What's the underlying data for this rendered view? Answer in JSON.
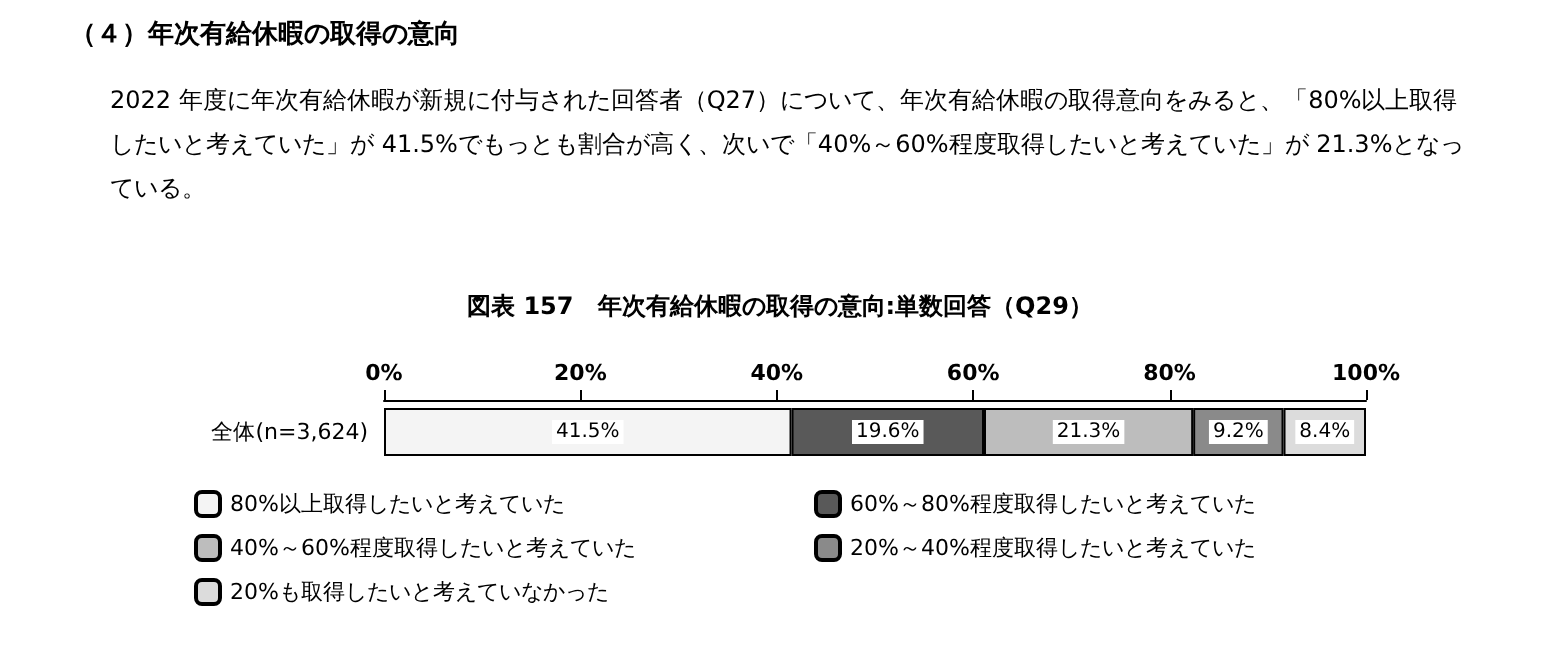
{
  "chart_data": {
    "type": "bar",
    "orientation": "horizontal",
    "stacked": true,
    "title": "（４）年次有給休暇の取得の意向",
    "subtitle": "2022 年度に年次有給休暇が新規に付与された回答者（Q27）について、年次有給休暇の取得意向をみると、「80%以上取得したいと考えていた」が 41.5%でもっとも割合が高く、次いで「40%～60%程度取得したいと考えていた」が 21.3%となっている。",
    "annotations": [
      "図表 157　年次有給休暇の取得の意向:単数回答（Q29）"
    ],
    "categories": [
      "全体(n=3,624)"
    ],
    "series": [
      {
        "name": "80%以上取得したいと考えていた",
        "color": "#f4f4f4",
        "values": [
          41.5
        ],
        "value_labels": [
          "41.5%"
        ]
      },
      {
        "name": "60%～80%程度取得したいと考えていた",
        "color": "#595959",
        "values": [
          19.6
        ],
        "value_labels": [
          "19.6%"
        ]
      },
      {
        "name": "40%～60%程度取得したいと考えていた",
        "color": "#bdbdbd",
        "values": [
          21.3
        ],
        "value_labels": [
          "21.3%"
        ]
      },
      {
        "name": "20%～40%程度取得したいと考えていた",
        "color": "#8a8a8a",
        "values": [
          9.2
        ],
        "value_labels": [
          "9.2%"
        ]
      },
      {
        "name": "20%も取得したいと考えていなかった",
        "color": "#dcdcdc",
        "values": [
          8.4
        ],
        "value_labels": [
          "8.4%"
        ]
      }
    ],
    "xlim": [
      0,
      100
    ],
    "xticks": [
      {
        "value": 0,
        "label": "0%"
      },
      {
        "value": 20,
        "label": "20%"
      },
      {
        "value": 40,
        "label": "40%"
      },
      {
        "value": 60,
        "label": "60%"
      },
      {
        "value": 80,
        "label": "80%"
      },
      {
        "value": 100,
        "label": "100%"
      }
    ],
    "grid": false,
    "legend": "bottom"
  }
}
